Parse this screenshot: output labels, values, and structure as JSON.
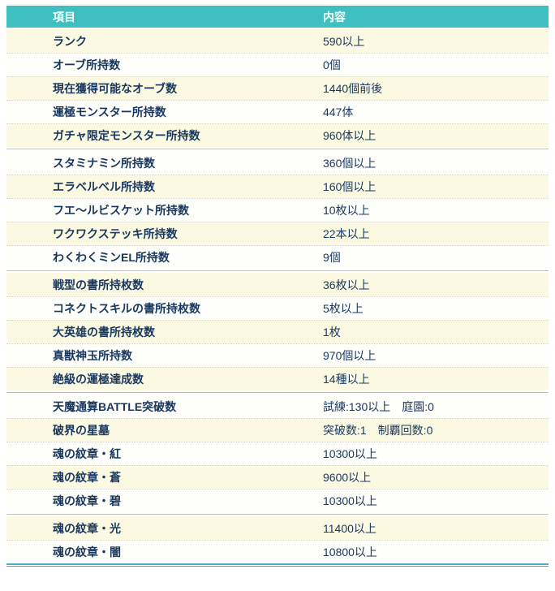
{
  "colors": {
    "header_bg": "#3ebfc0",
    "header_text": "#ffffff",
    "row_cream_bg": "#fbf9e2",
    "row_white_bg": "#fefefb",
    "row_text": "#17375e",
    "dotted_separator": "#d8d4c3",
    "group_divider_line": "#a9c7d1",
    "bottom_double_border": "#44b4c3"
  },
  "table": {
    "header": {
      "item_label": "項目",
      "content_label": "内容"
    },
    "groups": [
      {
        "rows": [
          {
            "label": "ランク",
            "value": "590以上"
          },
          {
            "label": "オーブ所持数",
            "value": "0個"
          },
          {
            "label": "現在獲得可能なオーブ数",
            "value": "1440個前後"
          },
          {
            "label": "運極モンスター所持数",
            "value": "447体"
          },
          {
            "label": "ガチャ限定モンスター所持数",
            "value": "960体以上"
          }
        ]
      },
      {
        "rows": [
          {
            "label": "スタミナミン所持数",
            "value": "360個以上"
          },
          {
            "label": "エラベルベル所持数",
            "value": "160個以上"
          },
          {
            "label": "フエ〜ルビスケット所持数",
            "value": "10枚以上"
          },
          {
            "label": "ワクワクステッキ所持数",
            "value": "22本以上"
          },
          {
            "label": "わくわくミンEL所持数",
            "value": "9個"
          }
        ]
      },
      {
        "rows": [
          {
            "label": "戦型の書所持枚数",
            "value": "36枚以上"
          },
          {
            "label": "コネクトスキルの書所持枚数",
            "value": "5枚以上"
          },
          {
            "label": "大英雄の書所持枚数",
            "value": "1枚"
          },
          {
            "label": "真獣神玉所持数",
            "value": "970個以上"
          },
          {
            "label": "絶級の運極達成数",
            "value": "14種以上"
          }
        ]
      },
      {
        "rows": [
          {
            "label": "天魔通算BATTLE突破数",
            "value": "試練:130以上　庭園:0"
          },
          {
            "label": "破界の星墓",
            "value": "突破数:1　制覇回数:0"
          },
          {
            "label": "魂の紋章・紅",
            "value": "10300以上"
          },
          {
            "label": "魂の紋章・蒼",
            "value": "9600以上"
          },
          {
            "label": "魂の紋章・碧",
            "value": "10300以上"
          }
        ]
      },
      {
        "rows": [
          {
            "label": "魂の紋章・光",
            "value": "11400以上"
          },
          {
            "label": "魂の紋章・闇",
            "value": "10800以上"
          }
        ]
      }
    ]
  }
}
